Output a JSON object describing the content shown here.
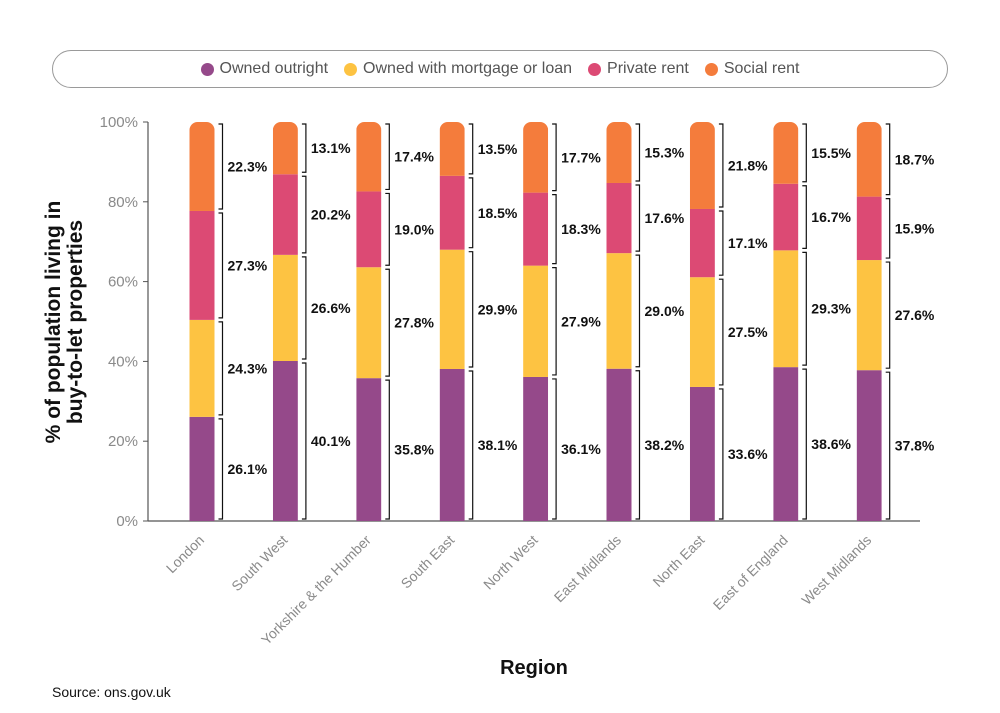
{
  "legend": [
    {
      "label": "Owned outright",
      "color": "#95498a"
    },
    {
      "label": "Owned with mortgage or loan",
      "color": "#fdc342"
    },
    {
      "label": "Private rent",
      "color": "#dc4a74"
    },
    {
      "label": "Social rent",
      "color": "#f47c3c"
    }
  ],
  "source": "Source: ons.gov.uk",
  "chart_data": {
    "type": "bar",
    "stacked": true,
    "xlabel": "Region",
    "ylabel": "% of population living in buy-to-let properties",
    "ylim": [
      0,
      100
    ],
    "yticks": [
      "0%",
      "20%",
      "40%",
      "60%",
      "80%",
      "100%"
    ],
    "categories": [
      "London",
      "South West",
      "Yorkshire & the Humber",
      "South East",
      "North West",
      "East Midlands",
      "North East",
      "East of England",
      "West Midlands"
    ],
    "series": [
      {
        "name": "Owned outright",
        "color": "#95498a",
        "values": [
          26.1,
          40.1,
          35.8,
          38.1,
          36.1,
          38.2,
          33.6,
          38.6,
          37.8
        ],
        "labels": [
          "26.1%",
          "40.1%",
          "35.8%",
          "38.1%",
          "36.1%",
          "38.2%",
          "33.6%",
          "38.6%",
          "37.8%"
        ]
      },
      {
        "name": "Owned with mortgage or loan",
        "color": "#fdc342",
        "values": [
          24.3,
          26.6,
          27.8,
          29.9,
          27.9,
          29.0,
          27.5,
          29.3,
          27.6
        ],
        "labels": [
          "24.3%",
          "26.6%",
          "27.8%",
          "29.9%",
          "27.9%",
          "29.0%",
          "27.5%",
          "29.3%",
          "27.6%"
        ]
      },
      {
        "name": "Private rent",
        "color": "#dc4a74",
        "values": [
          27.3,
          20.2,
          19.0,
          18.5,
          18.3,
          17.6,
          17.1,
          16.7,
          15.9
        ],
        "labels": [
          "27.3%",
          "20.2%",
          "19.0%",
          "18.5%",
          "18.3%",
          "17.6%",
          "17.1%",
          "16.7%",
          "15.9%"
        ]
      },
      {
        "name": "Social rent",
        "color": "#f47c3c",
        "values": [
          22.3,
          13.1,
          17.4,
          13.5,
          17.7,
          15.3,
          21.8,
          15.5,
          18.7
        ],
        "labels": [
          "22.3%",
          "13.1%",
          "17.4%",
          "13.5%",
          "17.7%",
          "15.3%",
          "21.8%",
          "15.5%",
          "18.7%"
        ]
      }
    ]
  }
}
